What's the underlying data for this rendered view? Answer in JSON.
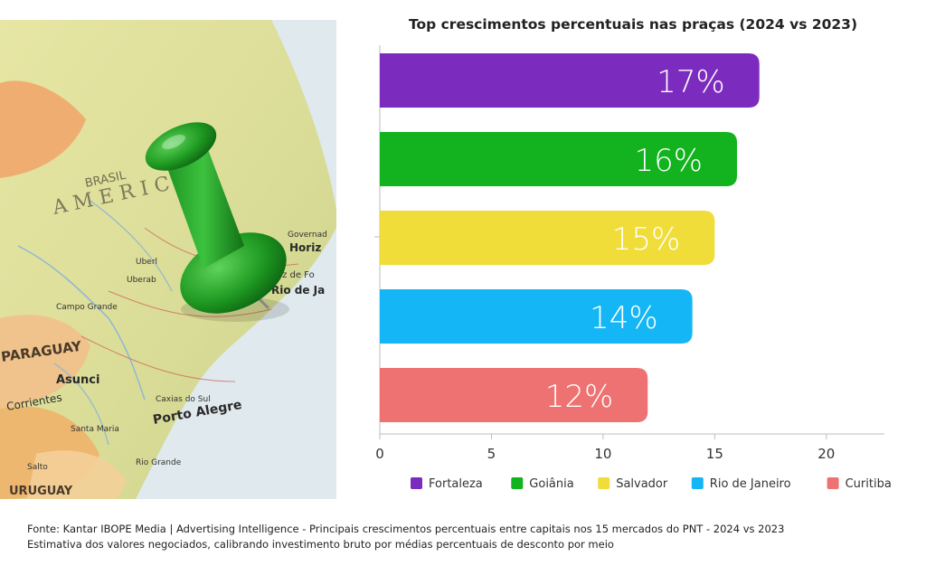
{
  "map_labels": {
    "paraguay": "PARAGUAY",
    "asuncion": "Asunci",
    "corrientes": "Corrientes",
    "porto_alegre": "Porto Alegre",
    "rio_de_janeiro": "Rio de Ja",
    "belo_horizonte": "Horiz",
    "uruguay": "URUGUAY",
    "campo_grande": "Campo Grande",
    "caxias_do_sul": "Caxias do Sul",
    "santa_maria": "Santa Maria",
    "uberlandia": "Uberl",
    "uberaba": "Uberab",
    "juiz_de_fora": "Juiz de Fo",
    "governador": "Governad",
    "salto": "Salto",
    "rio_grande": "Rio Grande",
    "brasil": "BRASIL",
    "america": "A M E R I C A"
  },
  "chart_data": {
    "type": "bar",
    "orientation": "horizontal",
    "title": "Top crescimentos percentuais nas praças (2024 vs 2023)",
    "categories": [
      "Fortaleza",
      "Goiânia",
      "Salvador",
      "Rio de Janeiro",
      "Curitiba"
    ],
    "values": [
      17,
      16,
      15,
      14,
      12
    ],
    "value_labels": [
      "17%",
      "16%",
      "15%",
      "14%",
      "12%"
    ],
    "colors": [
      "#7c2bbf",
      "#12b31e",
      "#f0dd3a",
      "#14b6f5",
      "#ee7272"
    ],
    "xlim": [
      0,
      22.6
    ],
    "xticks": [
      0,
      5,
      10,
      15,
      20
    ],
    "grid": false,
    "legend": "bottom"
  },
  "footer": {
    "source_line_1": "Fonte: Kantar IBOPE Media | Advertising Intelligence - Principais crescimentos percentuais entre capitais nos 15 mercados do PNT - 2024 vs 2023",
    "source_line_2": "Estimativa dos valores negociados, calibrando investimento bruto por médias percentuais de desconto por meio"
  }
}
